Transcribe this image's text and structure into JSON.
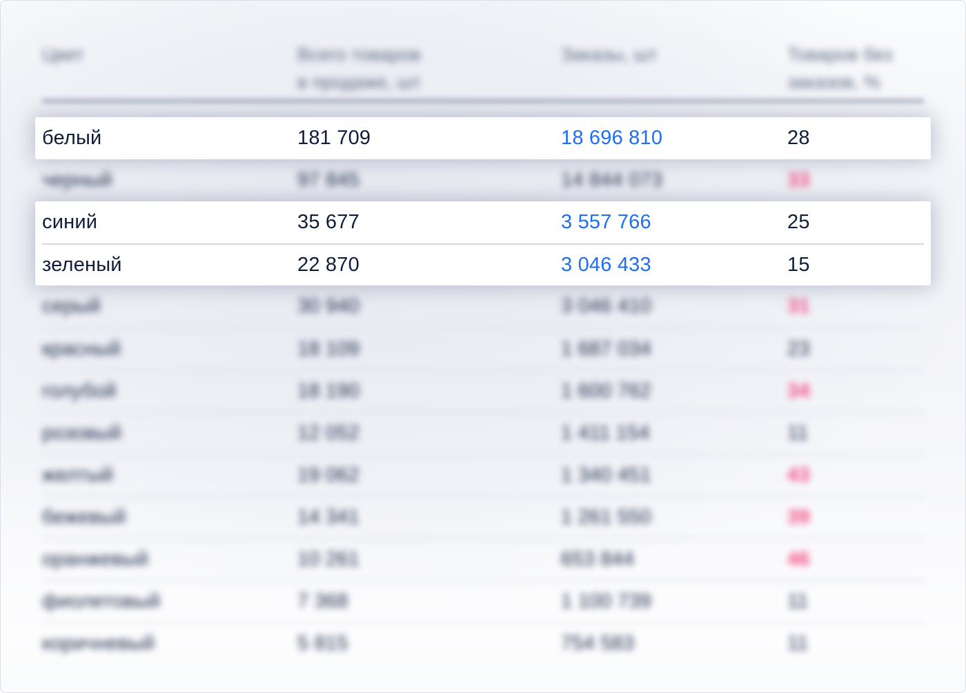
{
  "accent_colors": {
    "link_blue": "#1d6ef5",
    "alert_pink": "#f3487e",
    "text_navy": "#0f1c3a",
    "header_gray": "#5d6a85"
  },
  "table": {
    "header": {
      "col_color": "Цвет",
      "col_total_line1": "Всего товаров",
      "col_total_line2": "в продаже, шт",
      "col_orders": "Заказы, шт",
      "col_no_orders_line1": "Товаров без",
      "col_no_orders_line2": "заказов, %"
    },
    "rows": [
      {
        "color": "белый",
        "total": "181 709",
        "orders": "18 696 810",
        "orders_is_link": true,
        "no_orders_pct": "28",
        "pct_highlighted": false
      },
      {
        "color": "черный",
        "total": "97 845",
        "orders": "14 844 073",
        "orders_is_link": false,
        "no_orders_pct": "33",
        "pct_highlighted": true
      },
      {
        "color": "синий",
        "total": "35 677",
        "orders": "3 557 766",
        "orders_is_link": true,
        "no_orders_pct": "25",
        "pct_highlighted": false
      },
      {
        "color": "зеленый",
        "total": "22 870",
        "orders": "3 046 433",
        "orders_is_link": true,
        "no_orders_pct": "15",
        "pct_highlighted": false
      },
      {
        "color": "серый",
        "total": "30 940",
        "orders": "3 046 410",
        "orders_is_link": false,
        "no_orders_pct": "31",
        "pct_highlighted": true
      },
      {
        "color": "красный",
        "total": "18 109",
        "orders": "1 687 034",
        "orders_is_link": false,
        "no_orders_pct": "23",
        "pct_highlighted": false
      },
      {
        "color": "голубой",
        "total": "18 190",
        "orders": "1 600 762",
        "orders_is_link": false,
        "no_orders_pct": "34",
        "pct_highlighted": true
      },
      {
        "color": "розовый",
        "total": "12 052",
        "orders": "1 411 154",
        "orders_is_link": false,
        "no_orders_pct": "11",
        "pct_highlighted": false
      },
      {
        "color": "желтый",
        "total": "19 062",
        "orders": "1 340 451",
        "orders_is_link": false,
        "no_orders_pct": "43",
        "pct_highlighted": true
      },
      {
        "color": "бежевый",
        "total": "14 341",
        "orders": "1 261 550",
        "orders_is_link": false,
        "no_orders_pct": "39",
        "pct_highlighted": true
      },
      {
        "color": "оранжевый",
        "total": "10 261",
        "orders": "653 844",
        "orders_is_link": false,
        "no_orders_pct": "46",
        "pct_highlighted": true
      },
      {
        "color": "фиолетовый",
        "total": "7 368",
        "orders": "1 100 739",
        "orders_is_link": false,
        "no_orders_pct": "11",
        "pct_highlighted": false
      },
      {
        "color": "коричневый",
        "total": "5 815",
        "orders": "754 583",
        "orders_is_link": false,
        "no_orders_pct": "11",
        "pct_highlighted": false
      }
    ],
    "sections": [
      {
        "style": "card",
        "row_indices": [
          0
        ]
      },
      {
        "style": "blur",
        "row_indices": [
          1
        ]
      },
      {
        "style": "card",
        "row_indices": [
          2,
          3
        ]
      },
      {
        "style": "blur",
        "row_indices": [
          4,
          5,
          6,
          7,
          8,
          9,
          10,
          11,
          12
        ]
      }
    ]
  }
}
